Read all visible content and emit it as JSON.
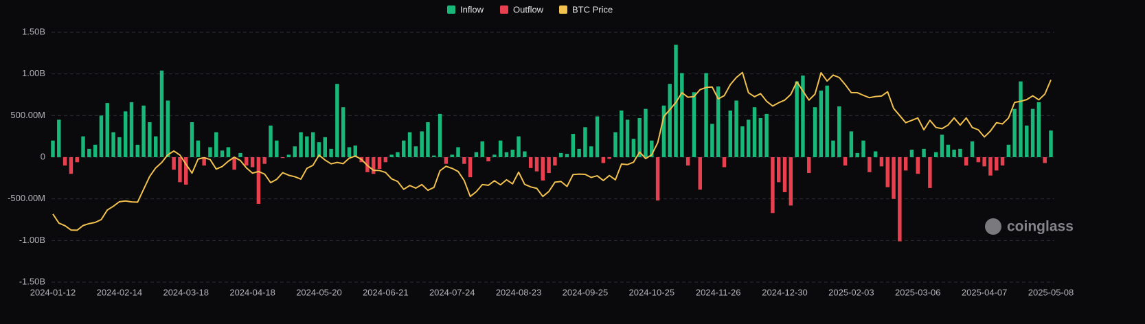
{
  "chart_data": {
    "type": "bar",
    "legend": "top",
    "grid": true,
    "watermark": "coinglass",
    "ylim": [
      -1500,
      1500
    ],
    "yticks": [
      {
        "value": -1500,
        "label": "-1.50B"
      },
      {
        "value": -1000,
        "label": "-1.00B"
      },
      {
        "value": -500,
        "label": "-500.00M"
      },
      0,
      {
        "value": 500,
        "label": "500.00M"
      },
      {
        "value": 1000,
        "label": "1.00B"
      },
      {
        "value": 1500,
        "label": "1.50B"
      }
    ],
    "y2lim": [
      18000,
      123000
    ],
    "categories": [
      "2024-01-12",
      null,
      null,
      null,
      null,
      null,
      null,
      null,
      null,
      null,
      null,
      "2024-02-14",
      null,
      null,
      null,
      null,
      null,
      null,
      null,
      null,
      null,
      null,
      "2024-03-18",
      null,
      null,
      null,
      null,
      null,
      null,
      null,
      null,
      null,
      null,
      "2024-04-18",
      null,
      null,
      null,
      null,
      null,
      null,
      null,
      null,
      null,
      null,
      "2024-05-20",
      null,
      null,
      null,
      null,
      null,
      null,
      null,
      null,
      null,
      null,
      "2024-06-21",
      null,
      null,
      null,
      null,
      null,
      null,
      null,
      null,
      null,
      null,
      "2024-07-24",
      null,
      null,
      null,
      null,
      null,
      null,
      null,
      null,
      null,
      null,
      "2024-08-23",
      null,
      null,
      null,
      null,
      null,
      null,
      null,
      null,
      null,
      null,
      "2024-09-25",
      null,
      null,
      null,
      null,
      null,
      null,
      null,
      null,
      null,
      null,
      "2024-10-25",
      null,
      null,
      null,
      null,
      null,
      null,
      null,
      null,
      null,
      null,
      "2024-11-26",
      null,
      null,
      null,
      null,
      null,
      null,
      null,
      null,
      null,
      null,
      "2024-12-30",
      null,
      null,
      null,
      null,
      null,
      null,
      null,
      null,
      null,
      null,
      "2025-02-03",
      null,
      null,
      null,
      null,
      null,
      null,
      null,
      null,
      null,
      null,
      "2025-03-06",
      null,
      null,
      null,
      null,
      null,
      null,
      null,
      null,
      null,
      null,
      "2025-04-07",
      null,
      null,
      null,
      null,
      null,
      null,
      null,
      null,
      null,
      null,
      "2025-05-08"
    ],
    "series": [
      {
        "name": "Inflow",
        "type": "bar",
        "color": "#18b87a",
        "values": [
          200,
          450,
          null,
          null,
          null,
          250,
          100,
          150,
          500,
          650,
          300,
          240,
          550,
          660,
          150,
          620,
          420,
          250,
          1040,
          680,
          null,
          null,
          null,
          420,
          200,
          null,
          120,
          300,
          80,
          120,
          null,
          50,
          null,
          null,
          null,
          null,
          380,
          200,
          null,
          30,
          130,
          300,
          250,
          300,
          180,
          240,
          100,
          880,
          600,
          120,
          140,
          null,
          null,
          null,
          null,
          null,
          30,
          60,
          200,
          300,
          130,
          310,
          420,
          20,
          520,
          null,
          30,
          120,
          null,
          null,
          60,
          190,
          null,
          30,
          200,
          60,
          90,
          250,
          70,
          null,
          null,
          null,
          null,
          null,
          50,
          40,
          280,
          100,
          360,
          130,
          490,
          null,
          null,
          300,
          560,
          450,
          220,
          470,
          580,
          200,
          null,
          620,
          880,
          1350,
          1010,
          null,
          780,
          null,
          1010,
          400,
          850,
          null,
          560,
          680,
          370,
          450,
          600,
          470,
          520,
          null,
          null,
          null,
          null,
          910,
          980,
          null,
          600,
          800,
          860,
          200,
          610,
          null,
          310,
          50,
          200,
          null,
          70,
          null,
          null,
          null,
          null,
          null,
          90,
          null,
          100,
          null,
          60,
          270,
          150,
          90,
          100,
          null,
          190,
          null,
          null,
          null,
          null,
          null,
          150,
          580,
          910,
          380,
          580,
          660,
          null,
          320
        ]
      },
      {
        "name": "Outflow",
        "type": "bar",
        "color": "#e8404f",
        "values": [
          null,
          null,
          -100,
          -200,
          -60,
          null,
          null,
          null,
          null,
          null,
          null,
          null,
          null,
          null,
          null,
          null,
          null,
          null,
          null,
          null,
          -150,
          -300,
          -330,
          null,
          null,
          -100,
          null,
          null,
          null,
          null,
          -150,
          null,
          -100,
          -120,
          -560,
          -80,
          null,
          null,
          -10,
          null,
          null,
          null,
          null,
          null,
          null,
          null,
          null,
          null,
          null,
          null,
          null,
          -60,
          -180,
          -200,
          -140,
          -60,
          null,
          null,
          null,
          null,
          null,
          null,
          null,
          null,
          null,
          -80,
          null,
          null,
          -80,
          -240,
          null,
          null,
          -50,
          null,
          null,
          null,
          null,
          null,
          null,
          -130,
          -170,
          -280,
          -190,
          -100,
          null,
          null,
          null,
          null,
          null,
          null,
          null,
          -70,
          -20,
          null,
          null,
          null,
          null,
          null,
          null,
          null,
          -520,
          null,
          null,
          null,
          null,
          -100,
          null,
          -390,
          null,
          null,
          null,
          -120,
          null,
          null,
          null,
          null,
          null,
          null,
          null,
          -670,
          -300,
          -420,
          -580,
          null,
          null,
          -190,
          null,
          null,
          null,
          null,
          null,
          -100,
          null,
          null,
          null,
          -180,
          null,
          -110,
          -360,
          -500,
          -1010,
          -160,
          null,
          -200,
          null,
          -370,
          null,
          null,
          null,
          null,
          null,
          -100,
          null,
          -60,
          -110,
          -220,
          -160,
          -100,
          null,
          null,
          null,
          null,
          null,
          null,
          -70,
          null
        ]
      },
      {
        "name": "BTC Price",
        "type": "line",
        "axis": "y2",
        "color": "#f2c14e",
        "values": [
          46600,
          42800,
          41700,
          39900,
          39800,
          41800,
          42600,
          43100,
          44300,
          48300,
          49900,
          51800,
          52100,
          51700,
          51600,
          57000,
          62400,
          66000,
          68300,
          71500,
          73100,
          71400,
          67600,
          63800,
          69700,
          70300,
          69500,
          65500,
          66600,
          68800,
          70500,
          69100,
          66000,
          63800,
          64500,
          63400,
          59800,
          61200,
          64000,
          62900,
          62300,
          61300,
          65800,
          67100,
          71400,
          69300,
          67700,
          68300,
          67800,
          70100,
          71000,
          69600,
          67000,
          65000,
          64900,
          64100,
          61400,
          60300,
          57000,
          58600,
          57500,
          59000,
          56600,
          57800,
          64800,
          66700,
          65800,
          64500,
          60700,
          54000,
          56000,
          59000,
          58700,
          60600,
          58900,
          61000,
          59300,
          64200,
          59100,
          58000,
          57400,
          54000,
          56100,
          60000,
          60300,
          58200,
          63200,
          63400,
          63300,
          62000,
          62700,
          60700,
          62800,
          61000,
          67600,
          67400,
          68400,
          72700,
          69900,
          71500,
          76600,
          87600,
          90500,
          93500,
          97600,
          95700,
          96000,
          98900,
          99800,
          100000,
          95000,
          96400,
          101000,
          104000,
          106100,
          97600,
          95900,
          97200,
          94000,
          92000,
          93400,
          94500,
          96900,
          102200,
          98300,
          94500,
          97000,
          106000,
          102500,
          105000,
          104000,
          101000,
          97600,
          97600,
          96500,
          95500,
          96000,
          96200,
          98000,
          91000,
          88000,
          85000,
          86000,
          87000,
          82000,
          86000,
          83000,
          82500,
          84000,
          87000,
          84000,
          87000,
          83000,
          82000,
          79000,
          81500,
          85000,
          84500,
          87000,
          93500,
          94000,
          94700,
          96300,
          94600,
          97000,
          103000
        ]
      }
    ]
  }
}
